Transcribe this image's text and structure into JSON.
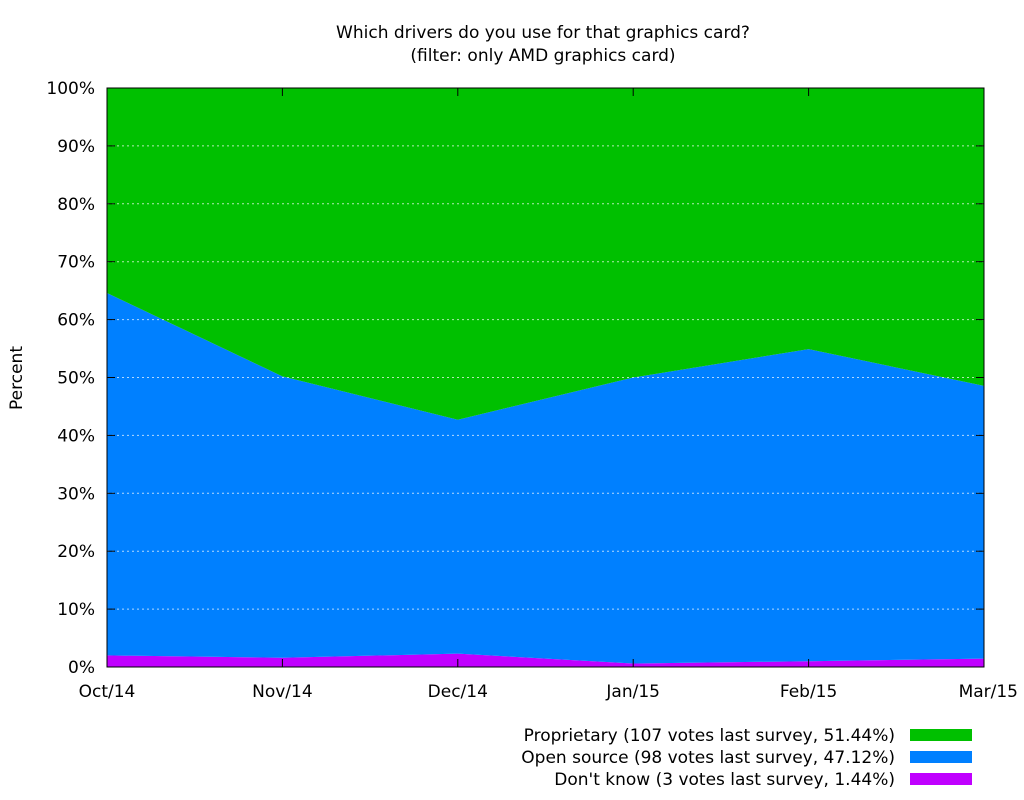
{
  "chart_data": {
    "type": "area",
    "stacked": true,
    "title": "Which drivers do you use for that graphics card?",
    "subtitle": "(filter: only AMD graphics card)",
    "ylabel": "Percent",
    "xlabel": "",
    "categories": [
      "Oct/14",
      "Nov/14",
      "Dec/14",
      "Jan/15",
      "Feb/15",
      "Mar/15"
    ],
    "ylim": [
      0,
      100
    ],
    "yticks": [
      "0%",
      "10%",
      "20%",
      "30%",
      "40%",
      "50%",
      "60%",
      "70%",
      "80%",
      "90%",
      "100%"
    ],
    "grid": true,
    "legend_position": "bottom-right",
    "series": [
      {
        "name": "Don't know (3 votes last survey, 1.44%)",
        "color": "#c000ff",
        "values": [
          2.0,
          1.6,
          2.3,
          0.6,
          1.0,
          1.44
        ]
      },
      {
        "name": "Open source (98 votes last survey, 47.12%)",
        "color": "#0080ff",
        "values": [
          62.6,
          48.6,
          40.4,
          49.4,
          53.9,
          47.12
        ]
      },
      {
        "name": "Proprietary (107 votes last survey, 51.44%)",
        "color": "#00c000",
        "values": [
          35.4,
          49.8,
          57.3,
          50.0,
          45.1,
          51.44
        ]
      }
    ]
  }
}
